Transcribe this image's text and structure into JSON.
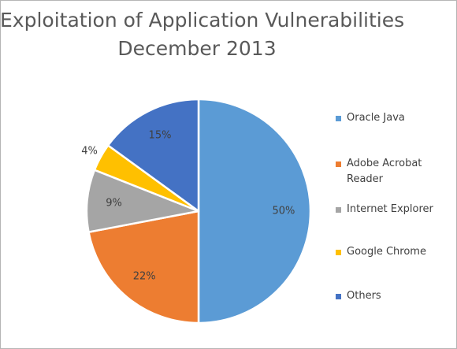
{
  "chart_data": {
    "type": "pie",
    "title": "Exploitation of Application Vulnerabilities",
    "subtitle": "December 2013",
    "categories": [
      "Oracle Java",
      "Adobe Acrobat Reader",
      "Internet Explorer",
      "Google Chrome",
      "Others"
    ],
    "values": [
      50,
      22,
      9,
      4,
      15
    ],
    "value_labels": [
      "50%",
      "22%",
      "9%",
      "4%",
      "15%"
    ],
    "colors": [
      "#5b9bd5",
      "#ed7d31",
      "#a5a5a5",
      "#ffc000",
      "#4472c4"
    ],
    "legend": {
      "position": "right",
      "entries": [
        {
          "label": "Oracle Java",
          "lines": [
            "Oracle Java"
          ]
        },
        {
          "label": "Adobe Acrobat Reader",
          "lines": [
            "Adobe Acrobat",
            "Reader"
          ]
        },
        {
          "label": "Internet Explorer",
          "lines": [
            "Internet Explorer"
          ]
        },
        {
          "label": "Google Chrome",
          "lines": [
            "Google Chrome"
          ]
        },
        {
          "label": "Others",
          "lines": [
            "Others"
          ]
        }
      ]
    }
  }
}
